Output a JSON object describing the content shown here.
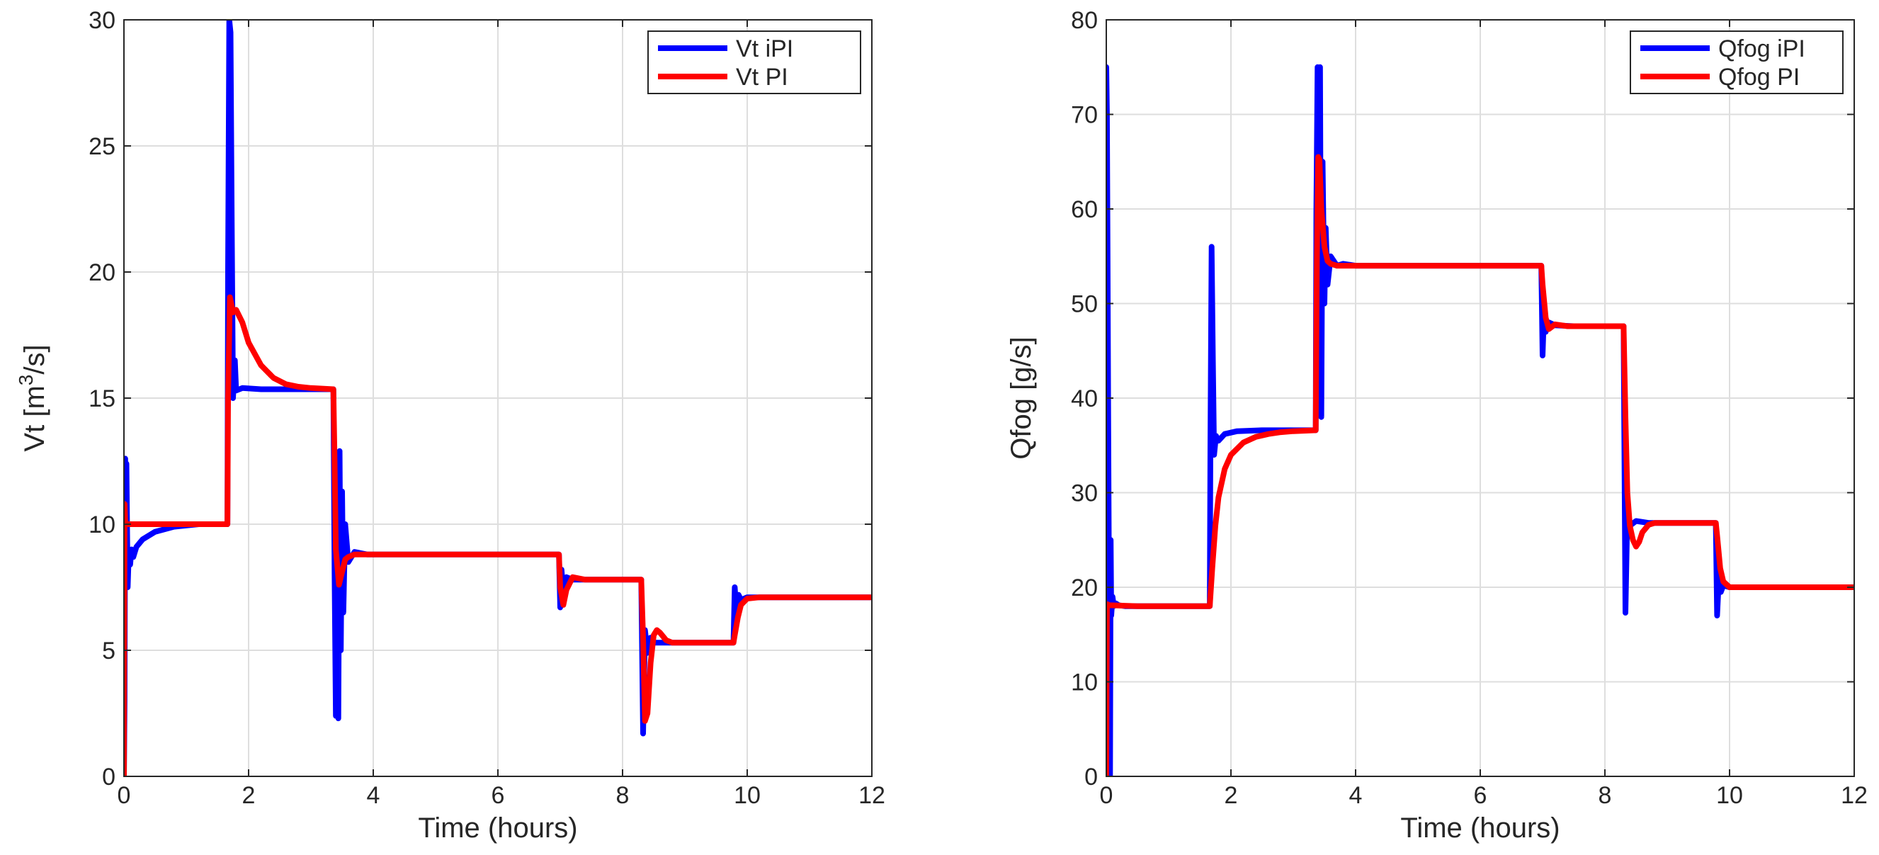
{
  "chart_data": [
    {
      "type": "line",
      "xlabel": "Time (hours)",
      "ylabel_main": "Vt [m",
      "ylabel_sup": "3",
      "ylabel_tail": "/s]",
      "xlim": [
        0,
        12
      ],
      "ylim": [
        0,
        30
      ],
      "xticks": [
        "0",
        "2",
        "4",
        "6",
        "8",
        "10",
        "12"
      ],
      "yticks": [
        "0",
        "5",
        "10",
        "15",
        "20",
        "25",
        "30"
      ],
      "grid": true,
      "legend_position": "top-right",
      "series": [
        {
          "name": "Vt iPI",
          "color": "#0000ff",
          "x": [
            0,
            0.01,
            0.02,
            0.03,
            0.04,
            0.06,
            0.08,
            0.1,
            0.12,
            0.15,
            0.2,
            0.3,
            0.5,
            0.8,
            1.2,
            1.66,
            1.67,
            1.69,
            1.71,
            1.73,
            1.75,
            1.78,
            1.8,
            1.9,
            2.2,
            2.8,
            3.36,
            3.38,
            3.4,
            3.42,
            3.44,
            3.46,
            3.48,
            3.5,
            3.52,
            3.55,
            3.6,
            3.7,
            3.9,
            5.0,
            6.98,
            7.0,
            7.02,
            7.05,
            7.1,
            7.2,
            7.5,
            8.3,
            8.33,
            8.36,
            8.4,
            8.45,
            8.5,
            8.6,
            9.0,
            9.78,
            9.8,
            9.83,
            9.86,
            9.9,
            10.0,
            10.5,
            12.0
          ],
          "y": [
            0,
            3,
            12.6,
            9.0,
            12.4,
            7.5,
            9.0,
            8.4,
            9.0,
            8.7,
            9.1,
            9.4,
            9.7,
            9.9,
            10.0,
            10.0,
            20.0,
            30.0,
            29.5,
            22.0,
            15.0,
            16.5,
            15.3,
            15.4,
            15.35,
            15.35,
            15.35,
            8.0,
            2.4,
            3.2,
            2.3,
            12.9,
            5.0,
            11.3,
            6.5,
            10.0,
            8.5,
            8.9,
            8.8,
            8.8,
            8.8,
            6.7,
            8.2,
            7.3,
            7.9,
            7.8,
            7.8,
            7.8,
            1.7,
            5.8,
            4.9,
            5.5,
            5.3,
            5.3,
            5.3,
            5.3,
            7.5,
            6.4,
            7.2,
            7.0,
            7.1,
            7.1,
            7.1
          ]
        },
        {
          "name": "Vt PI",
          "color": "#ff0000",
          "x": [
            0,
            0.01,
            0.02,
            0.03,
            0.05,
            0.1,
            0.5,
            1.0,
            1.66,
            1.67,
            1.7,
            1.75,
            1.8,
            1.9,
            2.0,
            2.2,
            2.4,
            2.6,
            2.8,
            3.0,
            3.36,
            3.38,
            3.4,
            3.45,
            3.5,
            3.55,
            3.6,
            3.7,
            3.9,
            5.0,
            6.98,
            7.0,
            7.05,
            7.1,
            7.2,
            7.4,
            8.3,
            8.33,
            8.36,
            8.4,
            8.45,
            8.5,
            8.55,
            8.6,
            8.7,
            8.8,
            9.0,
            9.78,
            9.8,
            9.85,
            9.9,
            10.0,
            10.2,
            12.0
          ],
          "y": [
            0,
            10.8,
            10.0,
            10.0,
            10.0,
            10.0,
            10.0,
            10.0,
            10.0,
            15.0,
            19.0,
            18.4,
            18.5,
            18.0,
            17.2,
            16.3,
            15.8,
            15.55,
            15.45,
            15.4,
            15.35,
            12.5,
            9.0,
            7.6,
            8.1,
            8.6,
            8.7,
            8.8,
            8.8,
            8.8,
            8.8,
            7.5,
            6.8,
            7.4,
            7.9,
            7.8,
            7.8,
            5.5,
            2.2,
            2.5,
            4.5,
            5.6,
            5.8,
            5.7,
            5.4,
            5.3,
            5.3,
            5.3,
            5.6,
            6.3,
            6.8,
            7.05,
            7.1,
            7.1
          ]
        }
      ]
    },
    {
      "type": "line",
      "xlabel": "Time (hours)",
      "ylabel_main": "Qfog [g/s]",
      "ylabel_sup": "",
      "ylabel_tail": "",
      "xlim": [
        0,
        12
      ],
      "ylim": [
        0,
        80
      ],
      "xticks": [
        "0",
        "2",
        "4",
        "6",
        "8",
        "10",
        "12"
      ],
      "yticks": [
        "0",
        "10",
        "20",
        "30",
        "40",
        "50",
        "60",
        "70",
        "80"
      ],
      "grid": true,
      "legend_position": "top-right",
      "series": [
        {
          "name": "Qfog iPI",
          "color": "#0000ff",
          "x": [
            0,
            0.01,
            0.02,
            0.03,
            0.04,
            0.05,
            0.06,
            0.07,
            0.08,
            0.1,
            0.12,
            0.15,
            0.2,
            0.3,
            0.5,
            1.0,
            1.66,
            1.67,
            1.69,
            1.71,
            1.73,
            1.76,
            1.8,
            1.9,
            2.1,
            2.5,
            3.0,
            3.36,
            3.37,
            3.39,
            3.41,
            3.43,
            3.45,
            3.47,
            3.5,
            3.52,
            3.55,
            3.6,
            3.7,
            3.8,
            4.0,
            5.0,
            6.98,
            7.0,
            7.02,
            7.05,
            7.1,
            7.2,
            7.5,
            8.3,
            8.33,
            8.36,
            8.4,
            8.5,
            8.7,
            9.78,
            9.8,
            9.83,
            9.86,
            9.9,
            10.0,
            10.5,
            12.0
          ],
          "y": [
            75,
            70,
            55,
            40,
            25,
            10,
            0,
            25,
            17,
            19,
            18,
            18.3,
            18.1,
            18.0,
            18.0,
            18.0,
            18.0,
            35,
            56,
            44,
            34,
            36,
            35.5,
            36.2,
            36.5,
            36.6,
            36.6,
            36.6,
            60,
            75,
            52,
            75,
            38,
            65,
            50,
            58,
            52,
            55,
            54,
            54.2,
            54.0,
            54.0,
            54.0,
            44.5,
            48.5,
            47.0,
            48.0,
            47.7,
            47.6,
            47.6,
            17.3,
            28.0,
            26.5,
            27.0,
            26.8,
            26.8,
            17.0,
            21.0,
            19.5,
            20.2,
            20.0,
            20.0,
            20.0
          ]
        },
        {
          "name": "Qfog PI",
          "color": "#ff0000",
          "x": [
            0,
            0.01,
            0.02,
            0.05,
            0.5,
            1.0,
            1.66,
            1.7,
            1.75,
            1.8,
            1.9,
            2.0,
            2.2,
            2.4,
            2.6,
            2.8,
            3.0,
            3.36,
            3.38,
            3.4,
            3.42,
            3.45,
            3.5,
            3.55,
            3.6,
            3.7,
            3.9,
            5.0,
            6.98,
            7.0,
            7.05,
            7.1,
            7.2,
            7.4,
            8.3,
            8.33,
            8.36,
            8.4,
            8.45,
            8.5,
            8.55,
            8.6,
            8.7,
            8.8,
            9.0,
            9.78,
            9.8,
            9.85,
            9.9,
            10.0,
            10.2,
            12.0
          ],
          "y": [
            0,
            18,
            18.2,
            18.1,
            18.0,
            18.0,
            18.0,
            22,
            26.5,
            29.5,
            32.5,
            34.0,
            35.3,
            35.9,
            36.2,
            36.4,
            36.5,
            36.6,
            55,
            65.5,
            65.2,
            60,
            56,
            54.5,
            54.2,
            54.0,
            54.0,
            54.0,
            54.0,
            52,
            48.5,
            47.3,
            47.8,
            47.6,
            47.6,
            38,
            30,
            26.5,
            25.0,
            24.3,
            24.8,
            25.8,
            26.6,
            26.8,
            26.8,
            26.8,
            25.5,
            22.0,
            20.6,
            20.0,
            20.0,
            20.0
          ]
        }
      ]
    }
  ]
}
